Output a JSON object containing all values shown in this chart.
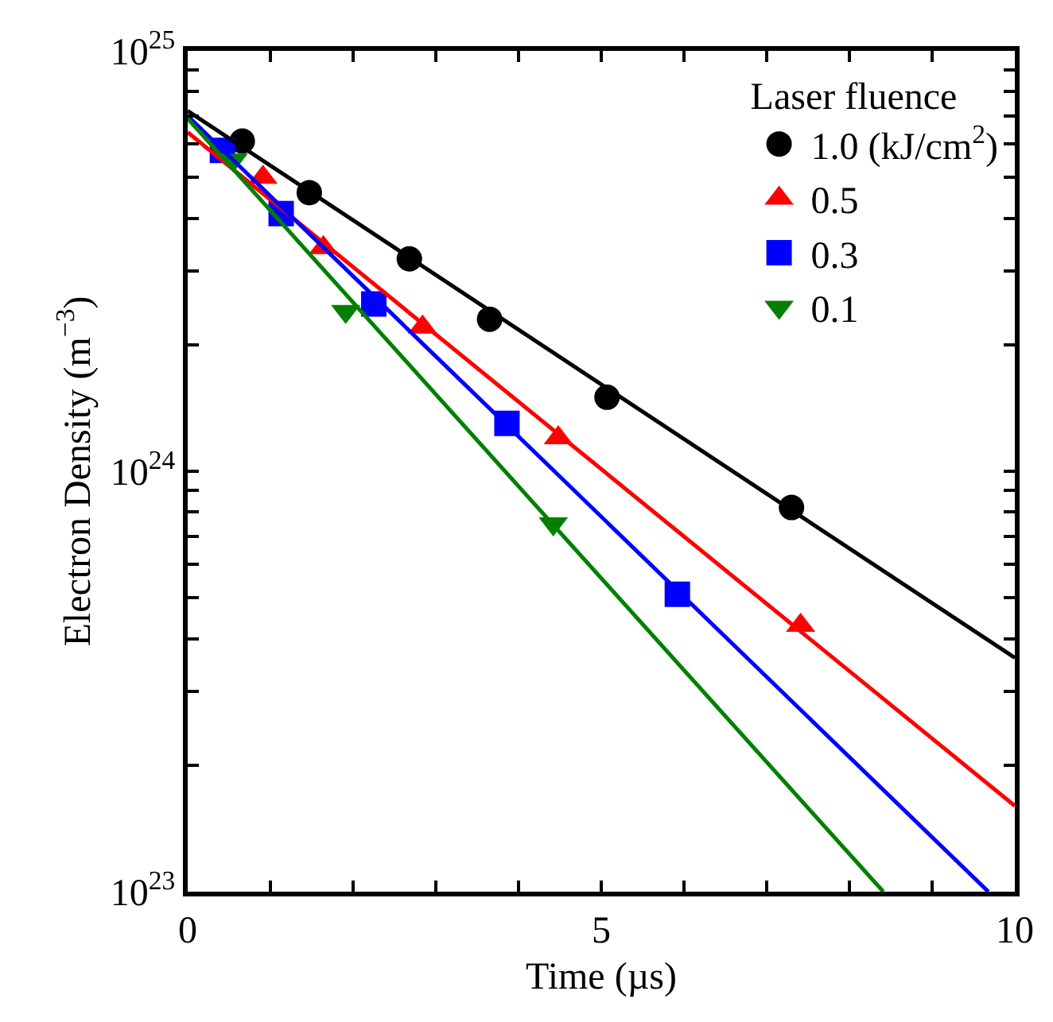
{
  "chart_data": {
    "type": "scatter",
    "xlabel": "Time (µs)",
    "ylabel": "Electron Density (m$^{−3}$)",
    "legend_title": "Laser fluence",
    "log": "y",
    "legend": "top right",
    "xlim": [
      0,
      10
    ],
    "ylim": [
      1e+23,
      1e+25
    ],
    "xticks": [
      0,
      {
        "value": 1,
        "label": null
      },
      {
        "value": 2,
        "label": null
      },
      {
        "value": 3,
        "label": null
      },
      {
        "value": 4,
        "label": null
      },
      5,
      {
        "value": 6,
        "label": null
      },
      {
        "value": 7,
        "label": null
      },
      {
        "value": 8,
        "label": null
      },
      {
        "value": 9,
        "label": null
      },
      10
    ],
    "yticks": [
      {
        "value": 1e+23,
        "label": "10$^{23}$"
      },
      {
        "value": 2e+23,
        "label": null
      },
      {
        "value": 3e+23,
        "label": null
      },
      {
        "value": 4e+23,
        "label": null
      },
      {
        "value": 5e+23,
        "label": null
      },
      {
        "value": 6e+23,
        "label": null
      },
      {
        "value": 7e+23,
        "label": null
      },
      {
        "value": 8e+23,
        "label": null
      },
      {
        "value": 9e+23,
        "label": null
      },
      {
        "value": 1e+24,
        "label": "10$^{24}$"
      },
      {
        "value": 2e+24,
        "label": null
      },
      {
        "value": 3e+24,
        "label": null
      },
      {
        "value": 4e+24,
        "label": null
      },
      {
        "value": 5e+24,
        "label": null
      },
      {
        "value": 6e+24,
        "label": null
      },
      {
        "value": 7e+24,
        "label": null
      },
      {
        "value": 8e+24,
        "label": null
      },
      {
        "value": 9e+24,
        "label": null
      },
      {
        "value": 1e+25,
        "label": "10$^{25}$"
      }
    ],
    "series": [
      {
        "name": "1.0 (kJ/cm$^{2}$)",
        "color": "#000000",
        "marker": "circle",
        "x": [
          0.66,
          1.47,
          2.68,
          3.65,
          5.07,
          7.3
        ],
        "values": [
          6.1e+24,
          4.6e+24,
          3.2e+24,
          2.3e+24,
          1.5e+24,
          8.2e+23
        ]
      },
      {
        "name": "0.5",
        "color": "#ff0000",
        "marker": "triangle",
        "x": [
          0.91,
          1.64,
          2.84,
          4.48,
          7.41
        ],
        "values": [
          5e+24,
          3.4e+24,
          2.2e+24,
          1.2e+24,
          4.3e+23
        ]
      },
      {
        "name": "0.3",
        "color": "#0000ff",
        "marker": "square",
        "x": [
          0.42,
          1.13,
          2.25,
          3.86,
          5.92
        ],
        "values": [
          5.8e+24,
          4.1e+24,
          2.5e+24,
          1.3e+24,
          5.1e+23
        ]
      },
      {
        "name": "0.1",
        "color": "#008000",
        "marker": "triangle-down",
        "x": [
          0.55,
          1.91,
          4.42
        ],
        "values": [
          5.5e+24,
          2.4e+24,
          7.5e+23
        ]
      },
      {
        "type": "line",
        "color": "#000000",
        "marker": "none",
        "x": [
          0,
          10
        ],
        "values": [
          7.2e+24,
          3.6e+23
        ]
      },
      {
        "type": "line",
        "color": "#ff0000",
        "marker": "none",
        "x": [
          0,
          10
        ],
        "values": [
          6.4e+24,
          1.6e+23
        ]
      },
      {
        "type": "line",
        "color": "#0000ff",
        "marker": "none",
        "x": [
          0,
          9.68
        ],
        "values": [
          7e+24,
          1e+23
        ]
      },
      {
        "type": "line",
        "color": "#008000",
        "marker": "none",
        "x": [
          0,
          8.41
        ],
        "values": [
          6.9e+24,
          1e+23
        ]
      }
    ]
  }
}
